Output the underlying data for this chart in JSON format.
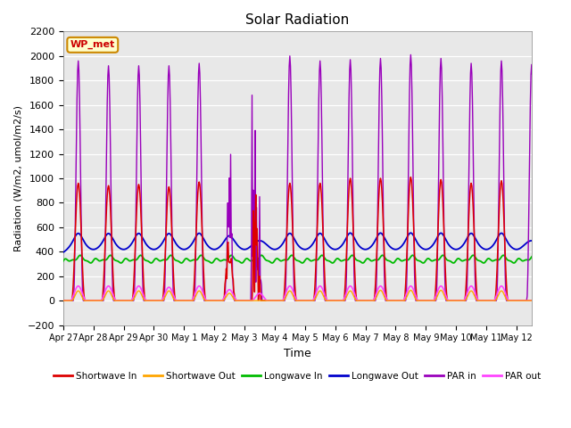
{
  "title": "Solar Radiation",
  "xlabel": "Time",
  "ylabel": "Radiation (W/m2, umol/m2/s)",
  "ylim": [
    -200,
    2200
  ],
  "n_days": 15.5,
  "annotation": "WP_met",
  "plot_bg": "#e8e8e8",
  "colors": {
    "shortwave_in": "#dd0000",
    "shortwave_out": "#ffa500",
    "longwave_in": "#00bb00",
    "longwave_out": "#0000cc",
    "par_in": "#9900bb",
    "par_out": "#ff44ff"
  },
  "legend": [
    {
      "label": "Shortwave In",
      "color": "#dd0000"
    },
    {
      "label": "Shortwave Out",
      "color": "#ffa500"
    },
    {
      "label": "Longwave In",
      "color": "#00bb00"
    },
    {
      "label": "Longwave Out",
      "color": "#0000cc"
    },
    {
      "label": "PAR in",
      "color": "#9900bb"
    },
    {
      "label": "PAR out",
      "color": "#ff44ff"
    }
  ],
  "xtick_labels": [
    "Apr 27",
    "Apr 28",
    "Apr 29",
    "Apr 30",
    "May 1",
    "May 2",
    "May 3",
    "May 4",
    "May 5",
    "May 6",
    "May 7",
    "May 8",
    "May 9",
    "May 10",
    "May 11",
    "May 12"
  ],
  "ytick_values": [
    -200,
    0,
    200,
    400,
    600,
    800,
    1000,
    1200,
    1400,
    1600,
    1800,
    2000,
    2200
  ],
  "par_in_peaks": [
    1960,
    1920,
    1920,
    1920,
    1940,
    1680,
    1460,
    2000,
    1960,
    1970,
    1980,
    2010,
    1980,
    1940,
    1960,
    1930
  ],
  "sw_in_peaks": [
    960,
    940,
    950,
    930,
    970,
    640,
    0,
    960,
    960,
    1000,
    1000,
    1010,
    990,
    960,
    980,
    0
  ],
  "sw_out_peaks": [
    80,
    80,
    80,
    80,
    80,
    60,
    0,
    80,
    80,
    80,
    85,
    85,
    85,
    80,
    80,
    0
  ],
  "par_out_peaks": [
    120,
    120,
    120,
    110,
    120,
    90,
    60,
    120,
    120,
    120,
    120,
    120,
    120,
    120,
    120,
    0
  ],
  "lw_in_base": 310,
  "lw_out_base": 370,
  "lw_out_day_peak": 490
}
